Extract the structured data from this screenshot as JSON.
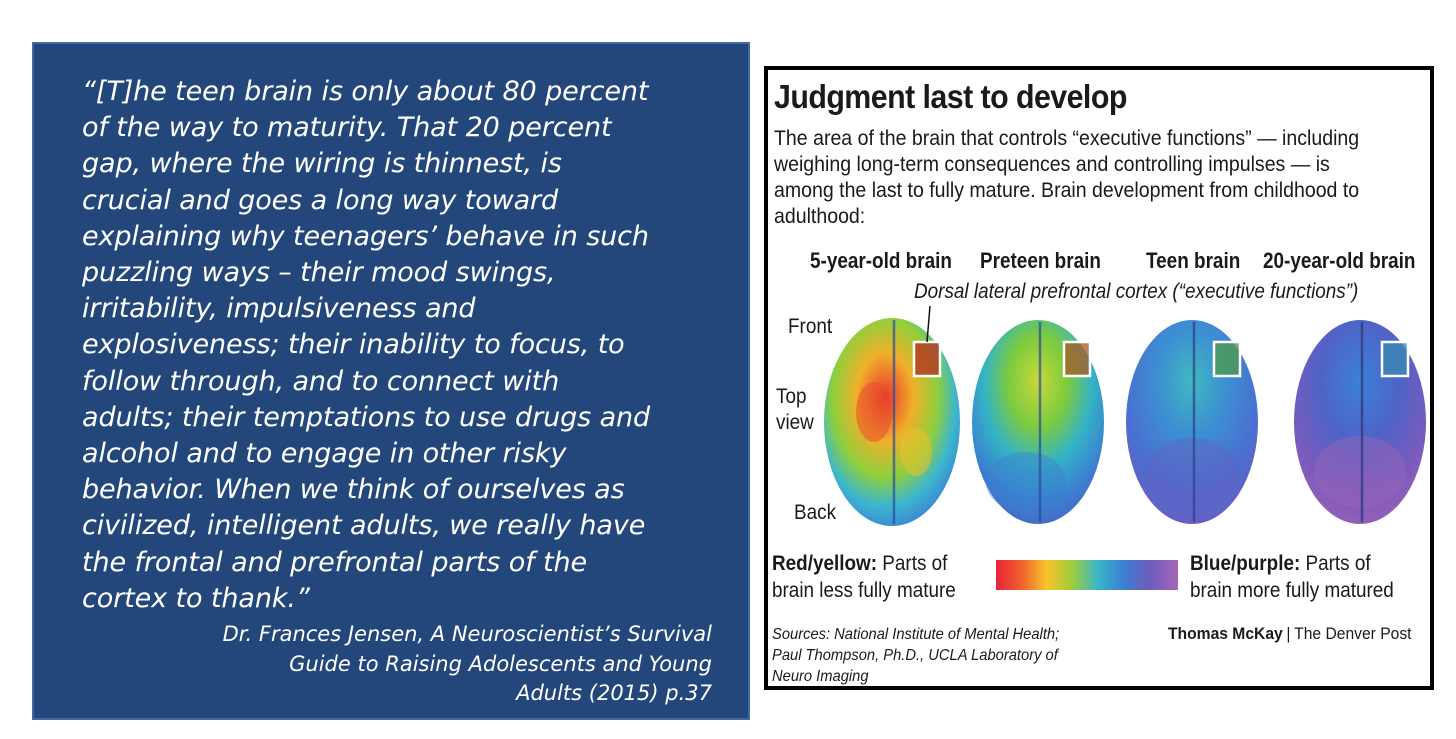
{
  "quote": {
    "lines": [
      "“[T]he teen brain is only about 80 percent",
      "of the way to maturity. That 20 percent",
      "gap, where the wiring is thinnest, is",
      "crucial and goes a long way toward",
      "explaining why teenagers’ behave in such",
      "puzzling ways – their mood swings,",
      "irritability, impulsiveness and",
      "explosiveness; their inability to focus, to",
      "follow through, and to connect with",
      "adults; their temptations to use drugs and",
      "alcohol and to engage in other risky",
      "behavior. When we think of ourselves as",
      "civilized, intelligent adults, we really have",
      "the frontal and prefrontal parts of the",
      "cortex to thank.”"
    ],
    "attribution": [
      "Dr. Frances Jensen, A Neuroscientist’s Survival",
      "Guide to Raising Adolescents and Young",
      "Adults (2015) p.37"
    ]
  },
  "infographic": {
    "title": "Judgment last to develop",
    "description": [
      "The area of the brain that controls “executive functions” — including",
      "weighing long-term consequences and controlling impulses — is",
      "among the last to fully mature. Brain development from childhood to",
      "adulthood:"
    ],
    "brain_labels": [
      "5-year-old brain",
      "Preteen brain",
      "Teen brain",
      "20-year-old brain"
    ],
    "region_label": "Dorsal lateral prefrontal cortex (“executive functions”)",
    "orientation": {
      "front": "Front",
      "top_view": [
        "Top",
        "view"
      ],
      "back": "Back"
    },
    "legend": {
      "left_bold": "Red/yellow:",
      "left_rest": " Parts of",
      "left_line2": "brain less fully mature",
      "right_bold": "Blue/purple:",
      "right_rest": " Parts of",
      "right_line2": "brain more fully matured",
      "colors": [
        "#e8243a",
        "#f0602c",
        "#f7c52a",
        "#9dcc3a",
        "#39b7c9",
        "#3b7fd1",
        "#6b5dbf",
        "#a667b6"
      ]
    },
    "sources": [
      "Sources: National Institute of Mental Health;",
      "Paul Thompson, Ph.D., UCLA Laboratory of",
      "Neuro Imaging"
    ],
    "credit": {
      "name": "Thomas McKay",
      "separator": "|",
      "outlet": "The Denver Post"
    }
  },
  "colors": {
    "panel_bg": "#23477a",
    "panel_border": "#3f6aa3",
    "text_white": "#ffffff"
  }
}
